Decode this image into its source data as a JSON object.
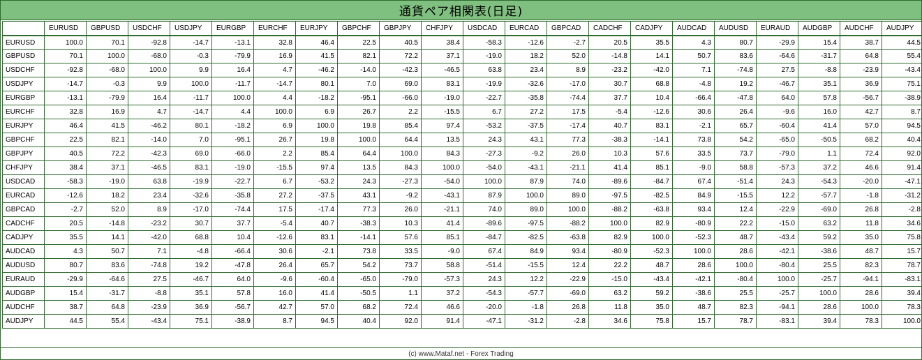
{
  "title": "通貨ペア相関表(日足)",
  "footer": "(c) www.Mataf.net - Forex Trading",
  "pairs": [
    "EURUSD",
    "GBPUSD",
    "USDCHF",
    "USDJPY",
    "EURGBP",
    "EURCHF",
    "EURJPY",
    "GBPCHF",
    "GBPJPY",
    "CHFJPY",
    "USDCAD",
    "EURCAD",
    "GBPCAD",
    "CADCHF",
    "CADJPY",
    "AUDCAD",
    "AUDUSD",
    "EURAUD",
    "AUDGBP",
    "AUDCHF",
    "AUDJPY"
  ],
  "matrix": [
    [
      "100.0",
      "70.1",
      "-92.8",
      "-14.7",
      "-13.1",
      "32.8",
      "46.4",
      "22.5",
      "40.5",
      "38.4",
      "-58.3",
      "-12.6",
      "-2.7",
      "20.5",
      "35.5",
      "4.3",
      "80.7",
      "-29.9",
      "15.4",
      "38.7",
      "44.5"
    ],
    [
      "70.1",
      "100.0",
      "-68.0",
      "-0.3",
      "-79.9",
      "16.9",
      "41.5",
      "82.1",
      "72.2",
      "37.1",
      "-19.0",
      "18.2",
      "52.0",
      "-14.8",
      "14.1",
      "50.7",
      "83.6",
      "-64.6",
      "-31.7",
      "64.8",
      "55.4"
    ],
    [
      "-92.8",
      "-68.0",
      "100.0",
      "9.9",
      "16.4",
      "4.7",
      "-46.2",
      "-14.0",
      "-42.3",
      "-46.5",
      "63.8",
      "23.4",
      "8.9",
      "-23.2",
      "-42.0",
      "7.1",
      "-74.8",
      "27.5",
      "-8.8",
      "-23.9",
      "-43.4"
    ],
    [
      "-14.7",
      "-0.3",
      "9.9",
      "100.0",
      "-11.7",
      "-14.7",
      "80.1",
      "7.0",
      "69.0",
      "83.1",
      "-19.9",
      "-32.6",
      "-17.0",
      "30.7",
      "68.8",
      "-4.8",
      "19.2",
      "-46.7",
      "35.1",
      "36.9",
      "75.1"
    ],
    [
      "-13.1",
      "-79.9",
      "16.4",
      "-11.7",
      "100.0",
      "4.4",
      "-18.2",
      "-95.1",
      "-66.0",
      "-19.0",
      "-22.7",
      "-35.8",
      "-74.4",
      "37.7",
      "10.4",
      "-66.4",
      "-47.8",
      "64.0",
      "57.8",
      "-56.7",
      "-38.9"
    ],
    [
      "32.8",
      "16.9",
      "4.7",
      "-14.7",
      "4.4",
      "100.0",
      "6.9",
      "26.7",
      "2.2",
      "-15.5",
      "6.7",
      "27.2",
      "17.5",
      "-5.4",
      "-12.6",
      "30.6",
      "26.4",
      "-9.6",
      "16.0",
      "42.7",
      "8.7"
    ],
    [
      "46.4",
      "41.5",
      "-46.2",
      "80.1",
      "-18.2",
      "6.9",
      "100.0",
      "19.8",
      "85.4",
      "97.4",
      "-53.2",
      "-37.5",
      "-17.4",
      "40.7",
      "83.1",
      "-2.1",
      "65.7",
      "-60.4",
      "41.4",
      "57.0",
      "94.5"
    ],
    [
      "22.5",
      "82.1",
      "-14.0",
      "7.0",
      "-95.1",
      "26.7",
      "19.8",
      "100.0",
      "64.4",
      "13.5",
      "24.3",
      "43.1",
      "77.3",
      "-38.3",
      "-14.1",
      "73.8",
      "54.2",
      "-65.0",
      "-50.5",
      "68.2",
      "40.4"
    ],
    [
      "40.5",
      "72.2",
      "-42.3",
      "69.0",
      "-66.0",
      "2.2",
      "85.4",
      "64.4",
      "100.0",
      "84.3",
      "-27.3",
      "-9.2",
      "26.0",
      "10.3",
      "57.6",
      "33.5",
      "73.7",
      "-79.0",
      "1.1",
      "72.4",
      "92.0"
    ],
    [
      "38.4",
      "37.1",
      "-46.5",
      "83.1",
      "-19.0",
      "-15.5",
      "97.4",
      "13.5",
      "84.3",
      "100.0",
      "-54.0",
      "-43.1",
      "-21.1",
      "41.4",
      "85.1",
      "-9.0",
      "58.8",
      "-57.3",
      "37.2",
      "46.6",
      "91.4"
    ],
    [
      "-58.3",
      "-19.0",
      "63.8",
      "-19.9",
      "-22.7",
      "6.7",
      "-53.2",
      "24.3",
      "-27.3",
      "-54.0",
      "100.0",
      "87.9",
      "74.0",
      "-89.6",
      "-84.7",
      "67.4",
      "-51.4",
      "24.3",
      "-54.3",
      "-20.0",
      "-47.1"
    ],
    [
      "-12.6",
      "18.2",
      "23.4",
      "-32.6",
      "-35.8",
      "27.2",
      "-37.5",
      "43.1",
      "-9.2",
      "-43.1",
      "87.9",
      "100.0",
      "89.0",
      "-97.5",
      "-82.5",
      "84.9",
      "-15.5",
      "12.2",
      "-57.7",
      "-1.8",
      "-31.2"
    ],
    [
      "-2.7",
      "52.0",
      "8.9",
      "-17.0",
      "-74.4",
      "17.5",
      "-17.4",
      "77.3",
      "26.0",
      "-21.1",
      "74.0",
      "89.0",
      "100.0",
      "-88.2",
      "-63.8",
      "93.4",
      "12.4",
      "-22.9",
      "-69.0",
      "26.8",
      "-2.8"
    ],
    [
      "20.5",
      "-14.8",
      "-23.2",
      "30.7",
      "37.7",
      "-5.4",
      "40.7",
      "-38.3",
      "10.3",
      "41.4",
      "-89.6",
      "-97.5",
      "-88.2",
      "100.0",
      "82.9",
      "-80.9",
      "22.2",
      "-15.0",
      "63.2",
      "11.8",
      "34.6"
    ],
    [
      "35.5",
      "14.1",
      "-42.0",
      "68.8",
      "10.4",
      "-12.6",
      "83.1",
      "-14.1",
      "57.6",
      "85.1",
      "-84.7",
      "-82.5",
      "-63.8",
      "82.9",
      "100.0",
      "-52.3",
      "48.7",
      "-43.4",
      "59.2",
      "35.0",
      "75.8"
    ],
    [
      "4.3",
      "50.7",
      "7.1",
      "-4.8",
      "-66.4",
      "30.6",
      "-2.1",
      "73.8",
      "33.5",
      "-9.0",
      "67.4",
      "84.9",
      "93.4",
      "-80.9",
      "-52.3",
      "100.0",
      "28.6",
      "-42.1",
      "-38.6",
      "48.7",
      "15.7"
    ],
    [
      "80.7",
      "83.6",
      "-74.8",
      "19.2",
      "-47.8",
      "26.4",
      "65.7",
      "54.2",
      "73.7",
      "58.8",
      "-51.4",
      "-15.5",
      "12.4",
      "22.2",
      "48.7",
      "28.6",
      "100.0",
      "-80.4",
      "25.5",
      "82.3",
      "78.7"
    ],
    [
      "-29.9",
      "-64.6",
      "27.5",
      "-46.7",
      "64.0",
      "-9.6",
      "-60.4",
      "-65.0",
      "-79.0",
      "-57.3",
      "24.3",
      "12.2",
      "-22.9",
      "-15.0",
      "-43.4",
      "-42.1",
      "-80.4",
      "100.0",
      "-25.7",
      "-94.1",
      "-83.1"
    ],
    [
      "15.4",
      "-31.7",
      "-8.8",
      "35.1",
      "57.8",
      "16.0",
      "41.4",
      "-50.5",
      "1.1",
      "37.2",
      "-54.3",
      "-57.7",
      "-69.0",
      "63.2",
      "59.2",
      "-38.6",
      "25.5",
      "-25.7",
      "100.0",
      "28.6",
      "39.4"
    ],
    [
      "38.7",
      "64.8",
      "-23.9",
      "36.9",
      "-56.7",
      "42.7",
      "57.0",
      "68.2",
      "72.4",
      "46.6",
      "-20.0",
      "-1.8",
      "26.8",
      "11.8",
      "35.0",
      "48.7",
      "82.3",
      "-94.1",
      "28.6",
      "100.0",
      "78.3"
    ],
    [
      "44.5",
      "55.4",
      "-43.4",
      "75.1",
      "-38.9",
      "8.7",
      "94.5",
      "40.4",
      "92.0",
      "91.4",
      "-47.1",
      "-31.2",
      "-2.8",
      "34.6",
      "75.8",
      "15.7",
      "78.7",
      "-83.1",
      "39.4",
      "78.3",
      "100.0"
    ]
  ]
}
